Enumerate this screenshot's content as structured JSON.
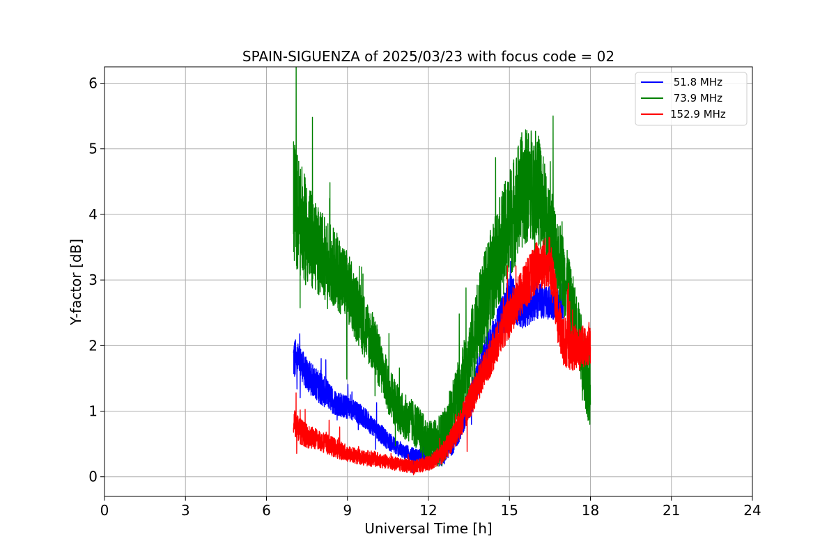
{
  "chart_data": {
    "type": "line",
    "title": "SPAIN-SIGUENZA of 2025/03/23 with focus code = 02",
    "xlabel": "Universal Time [h]",
    "ylabel": "Y-factor [dB]",
    "xlim": [
      0,
      24
    ],
    "ylim": [
      -0.3,
      6.25
    ],
    "xticks": [
      0,
      3,
      6,
      9,
      12,
      15,
      18,
      21,
      24
    ],
    "yticks": [
      0,
      1,
      2,
      3,
      4,
      5,
      6
    ],
    "grid": true,
    "legend_position": "top-right",
    "series": [
      {
        "name": " 51.8 MHz",
        "color": "#0000ff",
        "x": [
          7.0,
          7.25,
          7.5,
          8.0,
          8.5,
          9.0,
          9.5,
          10.0,
          10.5,
          11.0,
          11.5,
          12.0,
          12.5,
          13.0,
          13.5,
          14.0,
          14.5,
          15.0,
          15.5,
          16.0,
          16.5,
          17.0
        ],
        "y": [
          1.8,
          1.75,
          1.55,
          1.35,
          1.15,
          1.05,
          0.95,
          0.75,
          0.55,
          0.4,
          0.33,
          0.3,
          0.3,
          0.6,
          1.1,
          1.7,
          2.2,
          2.75,
          2.55,
          2.7,
          2.65,
          2.6
        ],
        "amplitude": [
          0.35,
          0.25,
          0.25,
          0.25,
          0.2,
          0.18,
          0.16,
          0.15,
          0.14,
          0.12,
          0.1,
          0.1,
          0.15,
          0.2,
          0.25,
          0.3,
          0.3,
          0.35,
          0.3,
          0.3,
          0.25,
          0.2
        ]
      },
      {
        "name": " 73.9 MHz",
        "color": "#008000",
        "x": [
          7.0,
          7.25,
          7.5,
          8.0,
          8.5,
          9.0,
          9.5,
          10.0,
          10.5,
          11.0,
          11.5,
          12.0,
          12.5,
          13.0,
          13.5,
          14.0,
          14.5,
          15.0,
          15.5,
          16.0,
          16.5,
          17.0,
          17.5,
          18.0
        ],
        "y": [
          4.2,
          3.9,
          3.7,
          3.4,
          3.2,
          2.9,
          2.4,
          2.0,
          1.35,
          0.95,
          0.8,
          0.5,
          0.55,
          1.1,
          1.8,
          2.6,
          3.3,
          3.85,
          4.4,
          4.5,
          3.7,
          3.1,
          2.3,
          1.2
        ],
        "amplitude": [
          1.0,
          0.9,
          0.8,
          0.65,
          0.6,
          0.55,
          0.5,
          0.45,
          0.4,
          0.35,
          0.35,
          0.35,
          0.4,
          0.5,
          0.6,
          0.7,
          0.8,
          0.85,
          0.9,
          0.85,
          0.75,
          0.6,
          0.5,
          0.6
        ]
      },
      {
        "name": "152.9 MHz",
        "color": "#ff0000",
        "x": [
          7.0,
          7.25,
          7.5,
          8.0,
          8.5,
          9.0,
          9.5,
          10.0,
          10.5,
          11.0,
          11.5,
          12.0,
          12.5,
          13.0,
          13.5,
          14.0,
          14.5,
          15.0,
          15.5,
          16.0,
          16.5,
          16.8,
          17.0,
          17.5,
          18.0
        ],
        "y": [
          0.85,
          0.7,
          0.62,
          0.55,
          0.45,
          0.35,
          0.3,
          0.27,
          0.22,
          0.18,
          0.15,
          0.2,
          0.35,
          0.65,
          1.1,
          1.55,
          2.0,
          2.45,
          2.85,
          3.2,
          3.3,
          2.4,
          2.05,
          1.95,
          2.0
        ],
        "amplitude": [
          0.2,
          0.2,
          0.18,
          0.16,
          0.15,
          0.13,
          0.12,
          0.12,
          0.11,
          0.1,
          0.1,
          0.12,
          0.15,
          0.2,
          0.25,
          0.28,
          0.3,
          0.33,
          0.35,
          0.4,
          0.4,
          0.4,
          0.4,
          0.35,
          0.3
        ]
      }
    ]
  }
}
